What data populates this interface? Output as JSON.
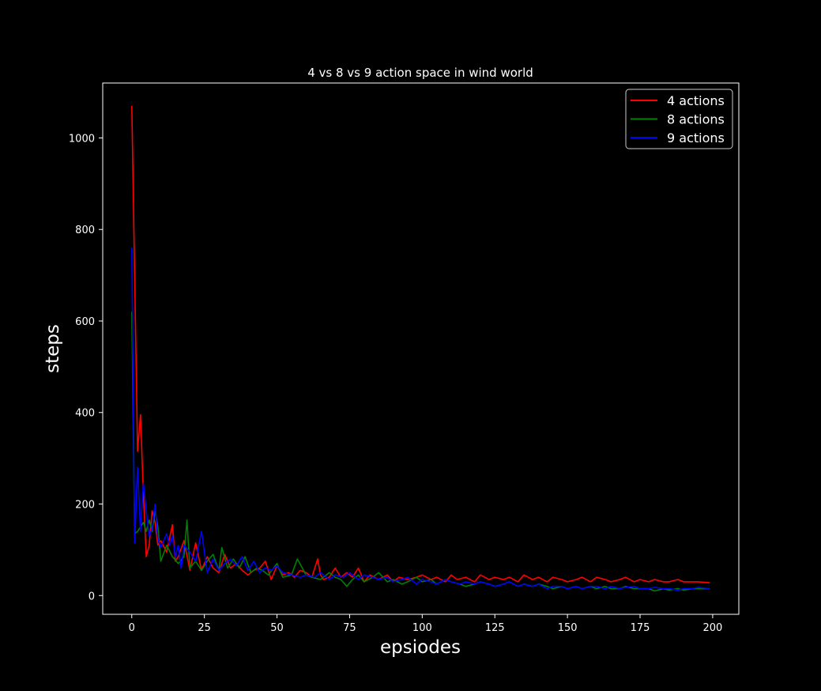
{
  "chart_data": {
    "type": "line",
    "title": "4 vs 8 vs 9 action space in wind world",
    "xlabel": "epsiodes",
    "ylabel": "steps",
    "xlim": [
      -10,
      209
    ],
    "ylim": [
      -41,
      1120
    ],
    "xticks": [
      0,
      25,
      50,
      75,
      100,
      125,
      150,
      175,
      200
    ],
    "yticks": [
      0,
      200,
      400,
      600,
      800,
      1000
    ],
    "grid": false,
    "legend_position": "top-right",
    "colors": {
      "background": "#000000",
      "axes": "#ffffff"
    },
    "series": [
      {
        "name": "4 actions",
        "color": "#ff0000",
        "x": [
          0,
          1,
          2,
          3,
          4,
          5,
          6,
          7,
          8,
          9,
          10,
          12,
          14,
          15,
          16,
          18,
          20,
          22,
          24,
          26,
          28,
          30,
          32,
          34,
          36,
          38,
          40,
          42,
          44,
          46,
          48,
          50,
          52,
          54,
          56,
          58,
          60,
          62,
          64,
          65,
          66,
          68,
          70,
          72,
          74,
          76,
          78,
          80,
          82,
          85,
          88,
          90,
          92,
          95,
          98,
          100,
          103,
          105,
          108,
          110,
          112,
          115,
          118,
          120,
          123,
          125,
          128,
          130,
          133,
          135,
          138,
          140,
          143,
          145,
          148,
          150,
          153,
          155,
          158,
          160,
          163,
          165,
          168,
          170,
          173,
          175,
          178,
          180,
          183,
          185,
          188,
          190,
          193,
          195,
          199
        ],
        "values": [
          1070,
          700,
          315,
          395,
          220,
          85,
          110,
          185,
          160,
          110,
          120,
          95,
          155,
          75,
          85,
          120,
          55,
          115,
          55,
          85,
          60,
          50,
          90,
          60,
          70,
          55,
          45,
          55,
          60,
          75,
          35,
          65,
          45,
          50,
          40,
          55,
          50,
          40,
          80,
          45,
          35,
          40,
          60,
          40,
          50,
          40,
          60,
          30,
          45,
          35,
          45,
          30,
          40,
          35,
          40,
          45,
          35,
          40,
          30,
          45,
          35,
          40,
          30,
          45,
          35,
          40,
          35,
          40,
          30,
          45,
          35,
          40,
          30,
          40,
          35,
          30,
          35,
          40,
          30,
          40,
          35,
          30,
          35,
          40,
          30,
          35,
          30,
          35,
          30,
          30,
          35,
          30,
          30,
          30,
          28
        ]
      },
      {
        "name": "8 actions",
        "color": "#008000",
        "x": [
          0,
          1,
          2,
          3,
          4,
          5,
          6,
          7,
          8,
          9,
          10,
          12,
          14,
          16,
          18,
          19,
          20,
          22,
          24,
          26,
          28,
          30,
          31,
          33,
          35,
          37,
          39,
          41,
          43,
          45,
          47,
          50,
          52,
          55,
          57,
          60,
          62,
          65,
          68,
          70,
          72,
          74,
          76,
          78,
          80,
          83,
          85,
          88,
          90,
          93,
          95,
          98,
          100,
          103,
          105,
          108,
          110,
          113,
          115,
          118,
          120,
          123,
          125,
          128,
          130,
          133,
          135,
          138,
          140,
          143,
          145,
          148,
          150,
          153,
          155,
          158,
          160,
          163,
          165,
          168,
          170,
          173,
          175,
          178,
          180,
          183,
          185,
          188,
          190,
          193,
          195,
          199
        ],
        "values": [
          620,
          135,
          140,
          150,
          160,
          140,
          165,
          140,
          185,
          150,
          75,
          110,
          85,
          70,
          85,
          165,
          60,
          75,
          55,
          75,
          90,
          55,
          105,
          60,
          80,
          60,
          85,
          50,
          60,
          55,
          45,
          70,
          40,
          45,
          80,
          45,
          40,
          35,
          50,
          40,
          35,
          20,
          35,
          45,
          30,
          40,
          50,
          30,
          35,
          25,
          30,
          40,
          30,
          35,
          25,
          35,
          30,
          25,
          20,
          25,
          30,
          25,
          20,
          25,
          30,
          20,
          25,
          20,
          25,
          20,
          15,
          20,
          15,
          20,
          15,
          20,
          15,
          20,
          15,
          15,
          20,
          15,
          15,
          15,
          10,
          15,
          12,
          15,
          12,
          15,
          15,
          15
        ]
      },
      {
        "name": "9 actions",
        "color": "#0000ff",
        "x": [
          0,
          1,
          2,
          3,
          4,
          5,
          6,
          7,
          8,
          9,
          10,
          11,
          12,
          13,
          14,
          15,
          16,
          17,
          18,
          20,
          22,
          24,
          26,
          28,
          30,
          32,
          34,
          36,
          38,
          40,
          42,
          44,
          46,
          48,
          50,
          52,
          55,
          58,
          60,
          63,
          65,
          68,
          70,
          73,
          75,
          78,
          80,
          83,
          85,
          88,
          90,
          93,
          95,
          98,
          100,
          103,
          105,
          108,
          110,
          113,
          115,
          118,
          120,
          123,
          125,
          128,
          130,
          133,
          135,
          138,
          140,
          143,
          145,
          148,
          150,
          153,
          155,
          158,
          160,
          163,
          165,
          168,
          170,
          173,
          175,
          178,
          180,
          183,
          185,
          188,
          190,
          193,
          195,
          199
        ],
        "values": [
          760,
          115,
          280,
          140,
          245,
          185,
          130,
          145,
          200,
          125,
          105,
          120,
          135,
          110,
          130,
          85,
          110,
          60,
          110,
          95,
          75,
          140,
          50,
          80,
          55,
          70,
          80,
          65,
          85,
          55,
          75,
          50,
          60,
          55,
          65,
          50,
          45,
          40,
          45,
          40,
          50,
          35,
          45,
          40,
          50,
          35,
          45,
          40,
          35,
          40,
          30,
          35,
          40,
          25,
          35,
          30,
          25,
          35,
          30,
          25,
          30,
          25,
          30,
          25,
          20,
          25,
          30,
          20,
          25,
          20,
          25,
          15,
          20,
          20,
          15,
          20,
          15,
          20,
          20,
          15,
          20,
          15,
          18,
          20,
          15,
          15,
          18,
          15,
          15,
          12,
          15,
          15,
          18,
          15
        ]
      }
    ]
  }
}
